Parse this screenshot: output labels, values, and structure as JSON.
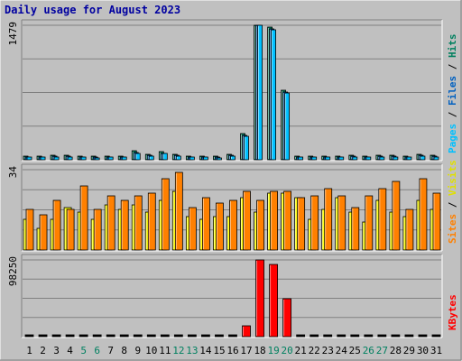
{
  "chart_data": {
    "type": "bar",
    "title": "Daily usage for August 2023",
    "days": [
      "1",
      "2",
      "3",
      "4",
      "5",
      "6",
      "7",
      "8",
      "9",
      "10",
      "11",
      "12",
      "13",
      "14",
      "15",
      "16",
      "17",
      "18",
      "19",
      "20",
      "21",
      "22",
      "23",
      "24",
      "25",
      "26",
      "27",
      "28",
      "29",
      "30",
      "31"
    ],
    "weekend_days": [
      "5",
      "6",
      "12",
      "13",
      "19",
      "20",
      "26",
      "27"
    ],
    "colors": {
      "background": "#c0c0c0",
      "title": "#0000a0",
      "pages": "#00c0ff",
      "files": "#0060c0",
      "hits": "#00805f",
      "visits": "#ffff00",
      "sites": "#ff8000",
      "kbytes": "#ff0000",
      "weekend": "#008060"
    },
    "panels": [
      {
        "name": "hits-panel",
        "max_label": "1479",
        "ymax": 1479,
        "side_labels": [
          {
            "text": "Pages",
            "color": "#00c0ff"
          },
          {
            "text": " / ",
            "color": "#000000"
          },
          {
            "text": "Files",
            "color": "#0060c0"
          },
          {
            "text": " / ",
            "color": "#000000"
          },
          {
            "text": "Hits",
            "color": "#00805f"
          }
        ],
        "series": [
          {
            "name": "Hits",
            "color": "#00805f",
            "values": [
              38,
              38,
              46,
              46,
              42,
              35,
              38,
              38,
              100,
              60,
              90,
              60,
              42,
              42,
              36,
              60,
              290,
              1479,
              1455,
              760,
              42,
              42,
              42,
              38,
              46,
              38,
              46,
              46,
              38,
              60,
              46
            ]
          },
          {
            "name": "Files",
            "color": "#0060c0",
            "values": [
              30,
              30,
              38,
              38,
              34,
              28,
              30,
              30,
              80,
              48,
              72,
              48,
              34,
              34,
              29,
              48,
              270,
              1479,
              1440,
              745,
              34,
              34,
              34,
              30,
              38,
              30,
              38,
              38,
              30,
              48,
              38
            ]
          },
          {
            "name": "Pages",
            "color": "#00c0ff",
            "values": [
              25,
              25,
              32,
              32,
              28,
              23,
              25,
              25,
              70,
              40,
              65,
              40,
              28,
              28,
              24,
              40,
              260,
              1479,
              1425,
              735,
              28,
              28,
              28,
              25,
              32,
              25,
              32,
              32,
              25,
              40,
              32
            ]
          }
        ]
      },
      {
        "name": "visits-panel",
        "max_label": "34",
        "ymax": 34,
        "side_labels": [
          {
            "text": "Sites",
            "color": "#ff8000"
          },
          {
            "text": " / ",
            "color": "#000000"
          },
          {
            "text": "Visits",
            "color": "#e0e000"
          }
        ],
        "series": [
          {
            "name": "Visits",
            "color": "#ffff00",
            "values": [
              13,
              9,
              13,
              18,
              16,
              13,
              19,
              17,
              19,
              16,
              21,
              25,
              14,
              13,
              14,
              14,
              22,
              16,
              24,
              24,
              22,
              13,
              17,
              22,
              16,
              12,
              21,
              16,
              14,
              21,
              17
            ]
          },
          {
            "name": "Sites",
            "color": "#ff8000",
            "values": [
              17,
              15,
              21,
              17,
              27,
              17,
              23,
              21,
              23,
              24,
              30,
              33,
              18,
              22,
              20,
              21,
              25,
              21,
              25,
              25,
              22,
              23,
              26,
              23,
              18,
              23,
              26,
              29,
              17,
              30,
              24
            ]
          }
        ]
      },
      {
        "name": "kbytes-panel",
        "max_label": "98250",
        "ymax": 98250,
        "side_labels": [
          {
            "text": "KBytes",
            "color": "#ff0000"
          }
        ],
        "series": [
          {
            "name": "KBytes",
            "color": "#ff0000",
            "values": [
              0,
              0,
              0,
              0,
              0,
              0,
              0,
              0,
              0,
              0,
              0,
              0,
              0,
              0,
              0,
              0,
              14000,
              98250,
              93000,
              48000,
              0,
              0,
              0,
              0,
              0,
              0,
              0,
              0,
              0,
              0,
              0
            ]
          }
        ]
      }
    ]
  }
}
